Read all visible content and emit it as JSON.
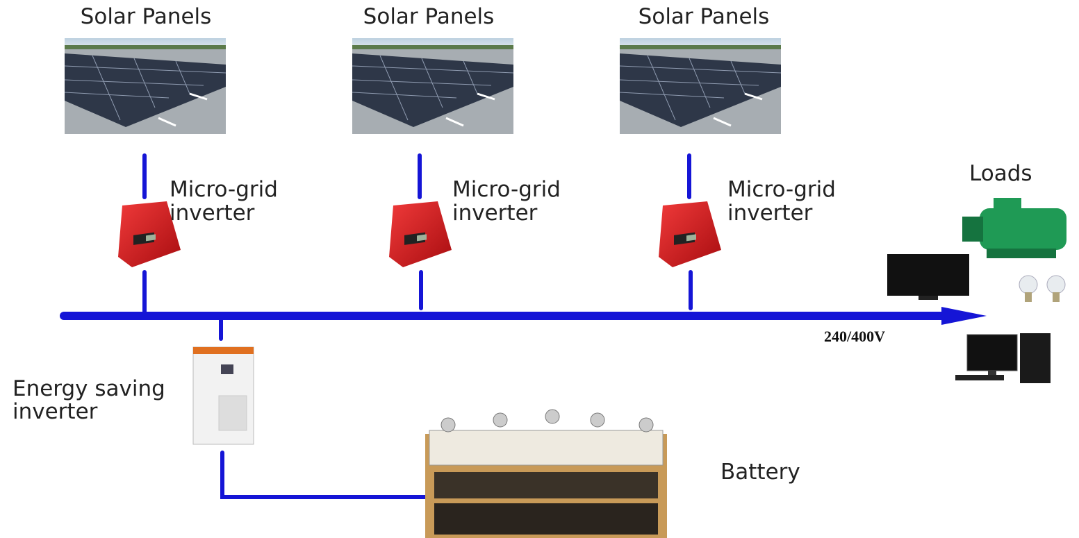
{
  "panels": [
    {
      "label": "Solar Panels",
      "inverter": [
        "Micro-grid",
        "inverter"
      ]
    },
    {
      "label": "Solar Panels",
      "inverter": [
        "Micro-grid",
        "inverter"
      ]
    },
    {
      "label": "Solar Panels",
      "inverter": [
        "Micro-grid",
        "inverter"
      ]
    }
  ],
  "loads": {
    "label": "Loads"
  },
  "bus": {
    "label": "240/400V"
  },
  "storage_inverter": {
    "label": [
      "Energy saving",
      "inverter"
    ]
  },
  "battery": {
    "label": "Battery"
  }
}
